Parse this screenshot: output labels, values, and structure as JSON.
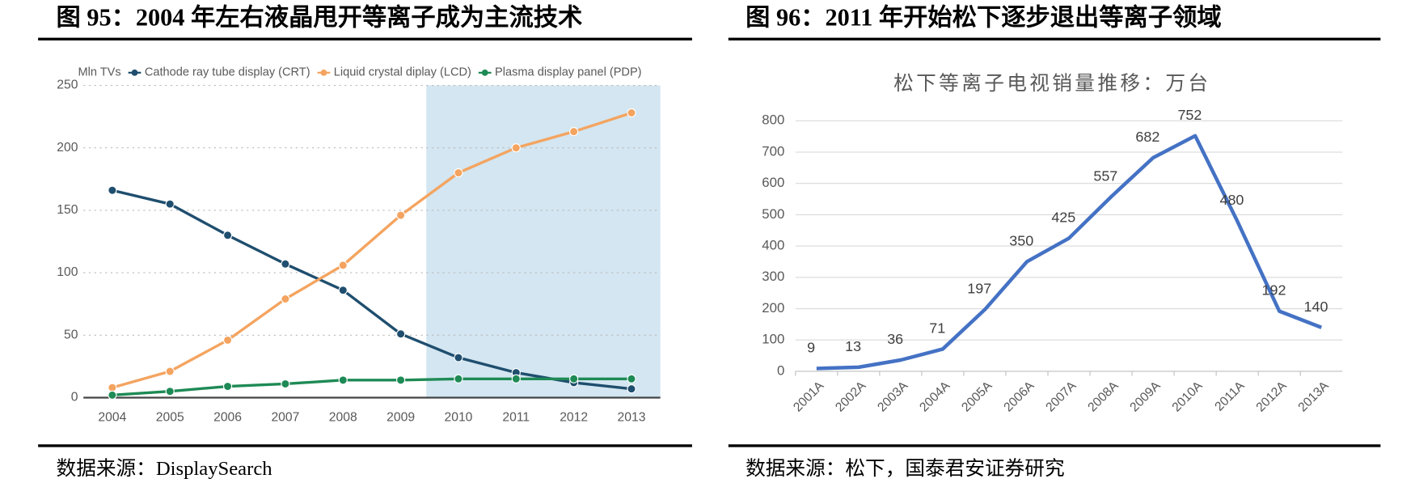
{
  "chart_data": [
    {
      "type": "line",
      "title": "图 95：2004 年左右液晶甩开等离子成为主流技术",
      "legend_title": "Mln TVs",
      "categories": [
        "2004",
        "2005",
        "2006",
        "2007",
        "2008",
        "2009",
        "2010",
        "2011",
        "2012",
        "2013"
      ],
      "series": [
        {
          "name": "Cathode ray tube display (CRT)",
          "color": "#1f4e6e",
          "values": [
            166,
            155,
            130,
            107,
            86,
            51,
            32,
            20,
            12,
            7
          ]
        },
        {
          "name": "Liquid crystal diplay (LCD)",
          "color": "#f4a460",
          "values": [
            8,
            21,
            46,
            79,
            106,
            146,
            180,
            200,
            213,
            228
          ]
        },
        {
          "name": "Plasma display panel (PDP)",
          "color": "#1e8a55",
          "values": [
            2,
            5,
            9,
            11,
            14,
            14,
            15,
            15,
            15,
            15
          ]
        }
      ],
      "ylim": [
        0,
        250
      ],
      "yticks": [
        0,
        50,
        100,
        150,
        200,
        250
      ],
      "grid": true,
      "legend": "top",
      "source": "数据来源：DisplaySearch"
    },
    {
      "type": "line",
      "title": "图 96：2011 年开始松下逐步退出等离子领域",
      "chart_title": "松下等离子电视销量推移：万台",
      "categories": [
        "2001A",
        "2002A",
        "2003A",
        "2004A",
        "2005A",
        "2006A",
        "2007A",
        "2008A",
        "2009A",
        "2010A",
        "2011A",
        "2012A",
        "2013A"
      ],
      "series": [
        {
          "name": null,
          "color": "#4472c4",
          "values": [
            9,
            13,
            36,
            71,
            197,
            350,
            425,
            557,
            682,
            752,
            480,
            192,
            140
          ]
        }
      ],
      "ylim": [
        0,
        800
      ],
      "yticks": [
        0,
        100,
        200,
        300,
        400,
        500,
        600,
        700,
        800
      ],
      "grid": true,
      "data_labels": true,
      "source": "数据来源：松下，国泰君安证券研究"
    }
  ]
}
